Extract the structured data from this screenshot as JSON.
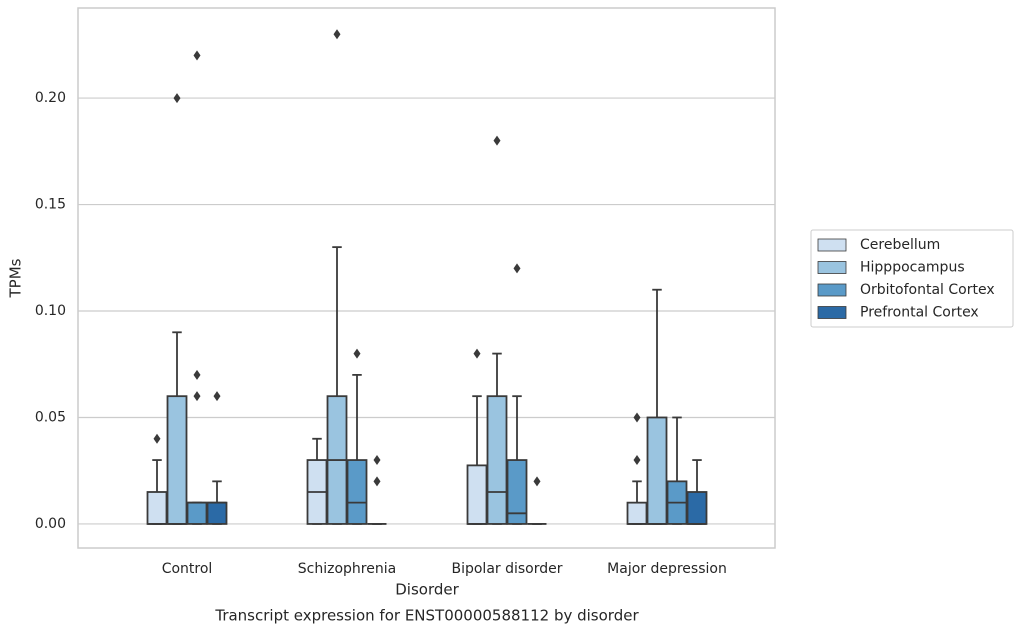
{
  "chart_data": {
    "type": "box",
    "title": "Transcript expression for ENST00000588112 by disorder",
    "xlabel": "Disorder",
    "ylabel": "TPMs",
    "categories": [
      "Control",
      "Schizophrenia",
      "Bipolar disorder",
      "Major depression"
    ],
    "ylim": [
      -0.0113,
      0.2423
    ],
    "yticks": [
      {
        "value": 0,
        "label": "0.00"
      },
      {
        "value": 0.05,
        "label": "0.05"
      },
      {
        "value": 0.1,
        "label": "0.10"
      },
      {
        "value": 0.15,
        "label": "0.15"
      },
      {
        "value": 0.2,
        "label": "0.20"
      }
    ],
    "grid": true,
    "legend": "right",
    "series": [
      {
        "name": "Cerebellum",
        "color": "#cfe0f1",
        "values": [
          {
            "low": 0,
            "q1": 0,
            "median": 0,
            "q3": 0.015,
            "high": 0.03,
            "outliers": [
              0.04
            ]
          },
          {
            "low": 0,
            "q1": 0,
            "median": 0.015,
            "q3": 0.03,
            "high": 0.04,
            "outliers": []
          },
          {
            "low": 0,
            "q1": 0,
            "median": 0,
            "q3": 0.0275,
            "high": 0.06,
            "outliers": [
              0.08
            ]
          },
          {
            "low": 0,
            "q1": 0,
            "median": 0,
            "q3": 0.01,
            "high": 0.02,
            "outliers": [
              0.03,
              0.05
            ]
          }
        ]
      },
      {
        "name": "Hipppocampus",
        "color": "#9ac4e0",
        "values": [
          {
            "low": 0,
            "q1": 0,
            "median": 0,
            "q3": 0.06,
            "high": 0.09,
            "outliers": [
              0.2
            ]
          },
          {
            "low": 0,
            "q1": 0,
            "median": 0.03,
            "q3": 0.06,
            "high": 0.13,
            "outliers": [
              0.23
            ]
          },
          {
            "low": 0,
            "q1": 0,
            "median": 0.015,
            "q3": 0.06,
            "high": 0.08,
            "outliers": [
              0.18
            ]
          },
          {
            "low": 0,
            "q1": 0,
            "median": 0,
            "q3": 0.05,
            "high": 0.11,
            "outliers": []
          }
        ]
      },
      {
        "name": "Orbitofontal Cortex",
        "color": "#5a9ac8",
        "values": [
          {
            "low": 0,
            "q1": 0,
            "median": 0.01,
            "q3": 0.01,
            "high": 0.01,
            "outliers": [
              0.06,
              0.07,
              0.22
            ]
          },
          {
            "low": 0,
            "q1": 0,
            "median": 0.01,
            "q3": 0.03,
            "high": 0.07,
            "outliers": [
              0.08
            ]
          },
          {
            "low": 0,
            "q1": 0,
            "median": 0.005,
            "q3": 0.03,
            "high": 0.06,
            "outliers": [
              0.12
            ]
          },
          {
            "low": 0,
            "q1": 0,
            "median": 0.01,
            "q3": 0.02,
            "high": 0.05,
            "outliers": []
          }
        ]
      },
      {
        "name": "Prefrontal Cortex",
        "color": "#2b6aa6",
        "values": [
          {
            "low": 0,
            "q1": 0,
            "median": 0.01,
            "q3": 0.01,
            "high": 0.02,
            "outliers": [
              0.06
            ]
          },
          {
            "low": 0,
            "q1": 0,
            "median": 0,
            "q3": 0,
            "high": 0,
            "outliers": [
              0.02,
              0.03
            ]
          },
          {
            "low": 0,
            "q1": 0,
            "median": 0,
            "q3": 0,
            "high": 0,
            "outliers": [
              0.02
            ]
          },
          {
            "low": 0,
            "q1": 0,
            "median": 0,
            "q3": 0.015,
            "high": 0.03,
            "outliers": []
          }
        ]
      }
    ]
  }
}
